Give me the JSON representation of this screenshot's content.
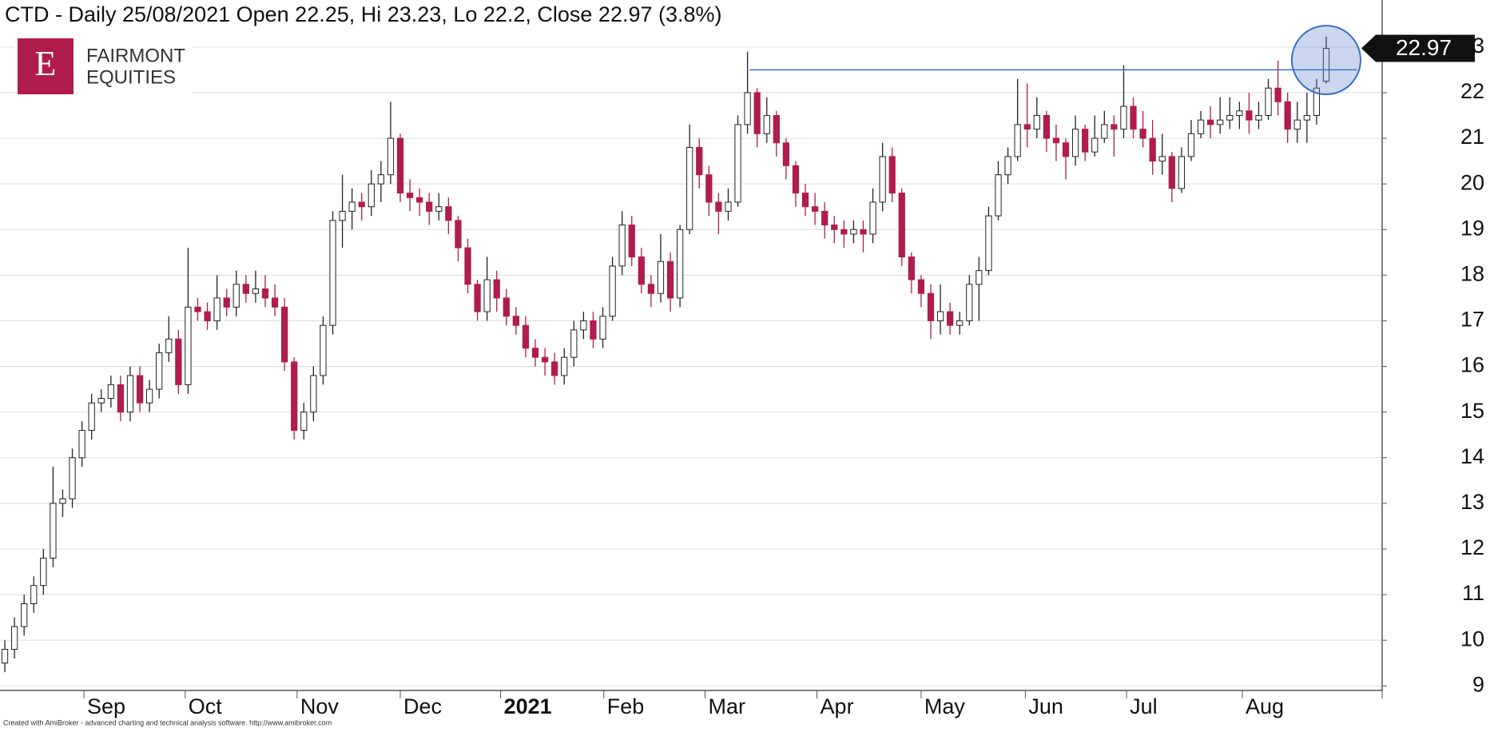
{
  "chart_data": {
    "type": "candlestick",
    "title": "CTD - Daily 25/08/2021 Open 22.25, Hi 23.23, Lo 22.2, Close 22.97 (3.8%)",
    "open": [
      9.5,
      9.8,
      10.3,
      10.8,
      11.2,
      11.8,
      13.0,
      13.1,
      14.0,
      14.6,
      15.2,
      15.3,
      15.6,
      15.0,
      15.8,
      15.2,
      15.5,
      16.3,
      16.6,
      15.6,
      17.3,
      17.2,
      17.0,
      17.5,
      17.3,
      17.8,
      17.6,
      17.7,
      17.5,
      17.3,
      16.1,
      14.6,
      15.0,
      15.8,
      16.9,
      19.2,
      19.4,
      19.6,
      19.5,
      20.0,
      20.2,
      21.0,
      19.8,
      19.7,
      19.6,
      19.4,
      19.5,
      19.2,
      18.6,
      17.8,
      17.2,
      17.9,
      17.5,
      17.1,
      16.9,
      16.4,
      16.2,
      16.1,
      15.8,
      16.2,
      16.8,
      17.0,
      16.6,
      17.1,
      18.2,
      19.1,
      18.4,
      17.8,
      17.6,
      18.3,
      17.5,
      19.0,
      20.8,
      20.2,
      19.6,
      19.4,
      19.6,
      21.3,
      22.0,
      21.1,
      21.5,
      20.9,
      20.4,
      19.8,
      19.5,
      19.4,
      19.1,
      19.0,
      18.9,
      19.0,
      18.9,
      19.6,
      20.6,
      19.8,
      18.4,
      17.9,
      17.6,
      17.0,
      17.2,
      16.9,
      17.0,
      17.8,
      18.1,
      19.3,
      20.2,
      20.6,
      21.3,
      21.2,
      21.5,
      21.0,
      20.9,
      20.6,
      21.2,
      20.7,
      21.0,
      21.3,
      21.2,
      21.7,
      21.2,
      21.0,
      20.5,
      20.6,
      19.9,
      20.6,
      21.1,
      21.4,
      21.3,
      21.4,
      21.5,
      21.6,
      21.4,
      21.5,
      22.1,
      21.8,
      21.2,
      21.4,
      21.5,
      22.25
    ],
    "high": [
      10.0,
      10.5,
      11.0,
      11.4,
      12.0,
      13.8,
      13.3,
      14.2,
      14.8,
      15.4,
      15.5,
      15.8,
      15.8,
      16.0,
      16.0,
      15.7,
      16.5,
      17.1,
      16.8,
      18.6,
      17.5,
      17.4,
      18.0,
      17.7,
      18.1,
      18.0,
      18.1,
      18.0,
      17.8,
      17.5,
      16.2,
      15.2,
      16.0,
      17.1,
      19.4,
      20.2,
      19.9,
      19.8,
      20.3,
      20.5,
      21.8,
      21.1,
      20.1,
      19.9,
      19.8,
      19.8,
      19.7,
      19.3,
      18.8,
      17.9,
      18.4,
      18.1,
      17.7,
      17.3,
      17.1,
      16.6,
      16.4,
      16.3,
      16.4,
      17.0,
      17.2,
      17.2,
      17.3,
      18.4,
      19.4,
      19.3,
      18.6,
      18.0,
      18.9,
      18.5,
      19.1,
      21.3,
      21.0,
      20.4,
      19.8,
      19.9,
      21.5,
      22.9,
      22.1,
      21.9,
      21.6,
      21.0,
      20.5,
      20.0,
      19.8,
      19.6,
      19.3,
      19.2,
      19.2,
      19.2,
      19.9,
      20.9,
      20.8,
      19.9,
      18.5,
      18.0,
      17.8,
      17.8,
      17.4,
      17.2,
      18.0,
      18.4,
      19.5,
      20.5,
      20.8,
      22.3,
      22.2,
      21.9,
      21.6,
      21.3,
      21.0,
      21.5,
      21.3,
      21.5,
      21.6,
      21.5,
      22.6,
      21.9,
      21.6,
      21.4,
      21.1,
      20.7,
      20.8,
      21.4,
      21.6,
      21.7,
      21.9,
      21.9,
      21.8,
      22.0,
      21.8,
      22.3,
      22.7,
      22.0,
      21.8,
      22.0,
      22.3,
      23.23
    ],
    "low": [
      9.3,
      9.6,
      10.1,
      10.6,
      11.0,
      11.6,
      12.7,
      12.9,
      13.8,
      14.4,
      15.0,
      15.1,
      14.8,
      14.8,
      15.0,
      15.0,
      15.3,
      16.1,
      15.4,
      15.4,
      17.0,
      16.8,
      16.8,
      17.1,
      17.1,
      17.4,
      17.4,
      17.3,
      17.1,
      15.9,
      14.4,
      14.4,
      14.8,
      15.6,
      16.7,
      18.6,
      19.0,
      19.2,
      19.3,
      19.6,
      20.0,
      19.6,
      19.4,
      19.3,
      19.1,
      19.2,
      18.9,
      18.3,
      17.6,
      17.0,
      17.0,
      17.2,
      16.9,
      16.7,
      16.2,
      16.0,
      15.8,
      15.6,
      15.6,
      16.0,
      16.6,
      16.4,
      16.4,
      17.0,
      18.0,
      18.2,
      17.6,
      17.3,
      17.4,
      17.2,
      17.3,
      18.9,
      19.9,
      19.3,
      18.9,
      19.2,
      19.5,
      21.1,
      20.8,
      20.9,
      20.6,
      20.1,
      19.5,
      19.3,
      19.1,
      18.8,
      18.7,
      18.6,
      18.7,
      18.5,
      18.7,
      19.4,
      19.6,
      18.2,
      17.6,
      17.3,
      16.6,
      16.7,
      16.7,
      16.7,
      16.9,
      17.0,
      18.0,
      19.2,
      20.0,
      20.5,
      20.8,
      21.0,
      20.7,
      20.5,
      20.1,
      20.4,
      20.5,
      20.6,
      20.9,
      20.6,
      21.0,
      21.0,
      20.8,
      20.2,
      20.2,
      19.6,
      19.8,
      20.5,
      21.0,
      21.0,
      21.1,
      21.2,
      21.2,
      21.1,
      21.2,
      21.4,
      21.5,
      20.9,
      20.9,
      20.9,
      21.3,
      22.2
    ],
    "close": [
      9.8,
      10.3,
      10.8,
      11.2,
      11.8,
      13.0,
      13.1,
      14.0,
      14.6,
      15.2,
      15.3,
      15.6,
      15.0,
      15.8,
      15.2,
      15.5,
      16.3,
      16.6,
      15.6,
      17.3,
      17.2,
      17.0,
      17.5,
      17.3,
      17.8,
      17.6,
      17.7,
      17.5,
      17.3,
      16.1,
      14.6,
      15.0,
      15.8,
      16.9,
      19.2,
      19.4,
      19.6,
      19.5,
      20.0,
      20.2,
      21.0,
      19.8,
      19.7,
      19.6,
      19.4,
      19.5,
      19.2,
      18.6,
      17.8,
      17.2,
      17.9,
      17.5,
      17.1,
      16.9,
      16.4,
      16.2,
      16.1,
      15.8,
      16.2,
      16.8,
      17.0,
      16.6,
      17.1,
      18.2,
      19.1,
      18.4,
      17.8,
      17.6,
      18.3,
      17.5,
      19.0,
      20.8,
      20.2,
      19.6,
      19.4,
      19.6,
      21.3,
      22.0,
      21.1,
      21.5,
      20.9,
      20.4,
      19.8,
      19.5,
      19.4,
      19.1,
      19.0,
      18.9,
      19.0,
      18.9,
      19.6,
      20.6,
      19.8,
      18.4,
      17.9,
      17.6,
      17.0,
      17.2,
      16.9,
      17.0,
      17.8,
      18.1,
      19.3,
      20.2,
      20.6,
      21.3,
      21.2,
      21.5,
      21.0,
      20.9,
      20.6,
      21.2,
      20.7,
      21.0,
      21.3,
      21.2,
      21.7,
      21.2,
      21.0,
      20.5,
      20.6,
      19.9,
      20.6,
      21.1,
      21.4,
      21.3,
      21.4,
      21.5,
      21.6,
      21.4,
      21.5,
      22.1,
      21.8,
      21.2,
      21.4,
      21.5,
      22.1,
      22.97
    ],
    "up_color": "#ffffff",
    "down_color": "#b01c4c",
    "outline_color": "#222222",
    "reference_line": 22.5,
    "reference_color": "#3a6fc4",
    "xlim": [
      -0.5,
      142.8
    ],
    "xticks": [
      {
        "value": 8.2,
        "label": "Sep"
      },
      {
        "value": 18.7,
        "label": "Oct"
      },
      {
        "value": 30.3,
        "label": "Nov"
      },
      {
        "value": 41.0,
        "label": "Dec"
      },
      {
        "value": 51.4,
        "label": "2021"
      },
      {
        "value": 62.1,
        "label": "Feb"
      },
      {
        "value": 72.6,
        "label": "Mar"
      },
      {
        "value": 84.2,
        "label": "Apr"
      },
      {
        "value": 95.0,
        "label": "May"
      },
      {
        "value": 105.8,
        "label": "Jun"
      },
      {
        "value": 116.3,
        "label": "Jul"
      },
      {
        "value": 128.3,
        "label": "Aug"
      }
    ],
    "ylim": [
      8.9,
      24.03
    ],
    "yticks": [
      9,
      10,
      11,
      12,
      13,
      14,
      15,
      16,
      17,
      18,
      19,
      20,
      21,
      22,
      23
    ],
    "grid": true
  },
  "logo": {
    "mark": "E",
    "line1": "FAIRMONT",
    "line2": "EQUITIES"
  },
  "footer": "Created with AmiBroker - advanced charting and technical analysis software. http://www.amibroker.com"
}
